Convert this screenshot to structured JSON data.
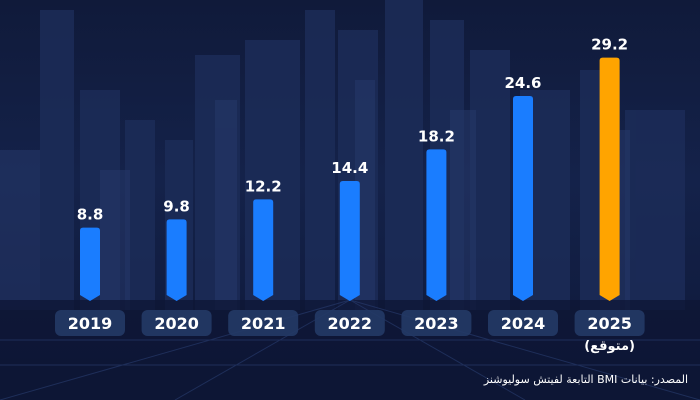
{
  "chart_data": {
    "type": "bar",
    "categories": [
      "2019",
      "2020",
      "2021",
      "2022",
      "2023",
      "2024",
      "2025"
    ],
    "category_sublabels": [
      "",
      "",
      "",
      "",
      "",
      "",
      "(متوقع)"
    ],
    "values": [
      8.8,
      9.8,
      12.2,
      14.4,
      18.2,
      24.6,
      29.2
    ],
    "value_labels": [
      "8.8",
      "9.8",
      "12.2",
      "14.4",
      "18.2",
      "24.6",
      "29.2"
    ],
    "ylim": [
      0,
      30
    ],
    "grid": false,
    "legend": "none",
    "colors": {
      "actual": "#1a7dff",
      "forecast": "#ffa400",
      "label_pill": "#243a66",
      "text": "#ffffff"
    },
    "forecast_index": 6
  },
  "source": "المصدر: بيانات BMI التابعة لفيتش سوليوشنز"
}
